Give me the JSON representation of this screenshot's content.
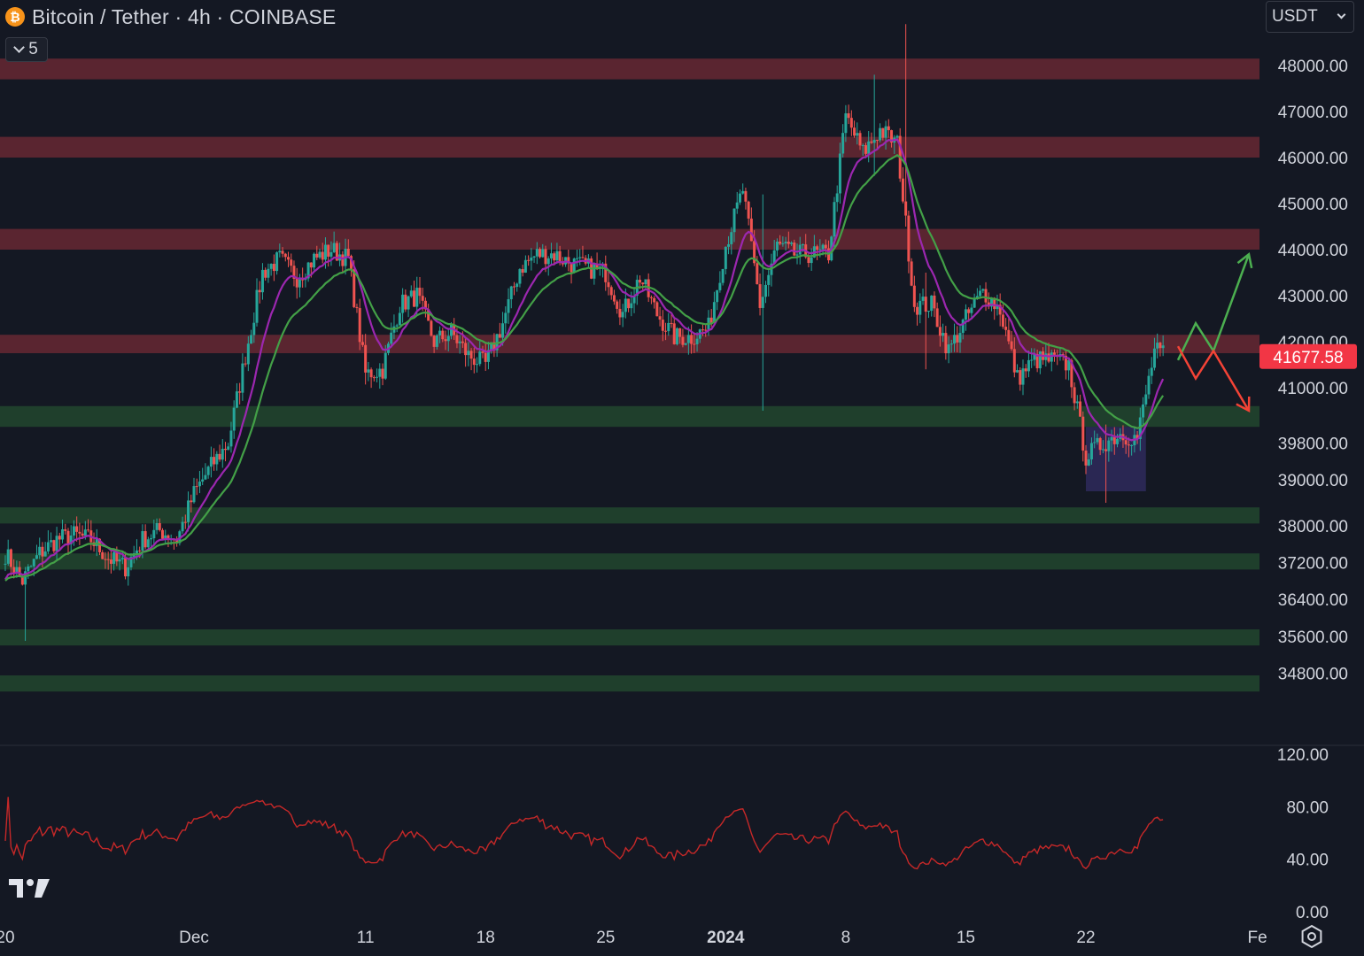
{
  "header": {
    "symbol_title": "Bitcoin / Tether · 4h · COINBASE",
    "coin_icon_glyph": "₿",
    "indicator_count": "5",
    "currency": "USDT"
  },
  "colors": {
    "background": "#141823",
    "resistance_zone": "#5a2530",
    "support_zone": "#1f3f2c",
    "consolidation_box": "#2e2a5c",
    "candle_up": "#26a69a",
    "candle_down": "#ef5350",
    "ema_fast": "#9c27b0",
    "ema_slow": "#43a047",
    "rsi": "#c62828",
    "arrow_up": "#4caf50",
    "arrow_down": "#f44336",
    "last_price_bg": "#f23645"
  },
  "chart_data": {
    "type": "candlestick",
    "price_axis": {
      "ticks": [
        34800,
        35600,
        36400,
        37200,
        38000,
        39000,
        39800,
        41000,
        42000,
        43000,
        44000,
        45000,
        46000,
        47000,
        48000
      ],
      "tick_labels": [
        "34800.00",
        "35600.00",
        "36400.00",
        "37200.00",
        "38000.00",
        "39000.00",
        "39800.00",
        "41000.00",
        "42000.00",
        "43000.00",
        "44000.00",
        "45000.00",
        "46000.00",
        "47000.00",
        "48000.00"
      ]
    },
    "time_axis": {
      "labels": [
        {
          "text": "20",
          "date": "2023-11-20"
        },
        {
          "text": "Dec",
          "date": "2023-12-01"
        },
        {
          "text": "11",
          "date": "2023-12-11"
        },
        {
          "text": "18",
          "date": "2023-12-18"
        },
        {
          "text": "25",
          "date": "2023-12-25"
        },
        {
          "text": "2024",
          "date": "2024-01-01",
          "bold": true
        },
        {
          "text": "8",
          "date": "2024-01-08"
        },
        {
          "text": "15",
          "date": "2024-01-15"
        },
        {
          "text": "22",
          "date": "2024-01-22"
        },
        {
          "text": "Fe",
          "date": "2024-02-01"
        }
      ]
    },
    "last_price": "41677.58",
    "resistance_zones": [
      [
        47700,
        48150
      ],
      [
        46000,
        46450
      ],
      [
        44000,
        44450
      ],
      [
        41750,
        42150
      ]
    ],
    "support_zones": [
      [
        40150,
        40600
      ],
      [
        38050,
        38400
      ],
      [
        37050,
        37400
      ],
      [
        35400,
        35750
      ],
      [
        34400,
        34750
      ]
    ],
    "consolidation_box": {
      "start": "2024-01-22",
      "end": "2024-01-25 12:00",
      "low": 38750,
      "high": 40150
    },
    "price_path": [
      [
        "2023-11-20",
        37400
      ],
      [
        "2023-11-21",
        36800
      ],
      [
        "2023-11-22",
        37400
      ],
      [
        "2023-11-23",
        37700
      ],
      [
        "2023-11-24",
        37800
      ],
      [
        "2023-11-25",
        37700
      ],
      [
        "2023-11-26",
        37300
      ],
      [
        "2023-11-27",
        37100
      ],
      [
        "2023-11-28",
        37700
      ],
      [
        "2023-11-29",
        37900
      ],
      [
        "2023-11-30",
        37700
      ],
      [
        "2023-12-01",
        38700
      ],
      [
        "2023-12-02",
        39300
      ],
      [
        "2023-12-03",
        39800
      ],
      [
        "2023-12-04",
        41700
      ],
      [
        "2023-12-05",
        43500
      ],
      [
        "2023-12-06",
        43800
      ],
      [
        "2023-12-07",
        43400
      ],
      [
        "2023-12-08",
        43800
      ],
      [
        "2023-12-09",
        44000
      ],
      [
        "2023-12-10",
        43800
      ],
      [
        "2023-12-11",
        41300
      ],
      [
        "2023-12-12",
        41400
      ],
      [
        "2023-12-13",
        42800
      ],
      [
        "2023-12-14",
        43000
      ],
      [
        "2023-12-15",
        42000
      ],
      [
        "2023-12-16",
        42200
      ],
      [
        "2023-12-17",
        41700
      ],
      [
        "2023-12-18",
        41500
      ],
      [
        "2023-12-19",
        42400
      ],
      [
        "2023-12-20",
        43600
      ],
      [
        "2023-12-21",
        43900
      ],
      [
        "2023-12-22",
        43900
      ],
      [
        "2023-12-23",
        43700
      ],
      [
        "2023-12-24",
        43600
      ],
      [
        "2023-12-25",
        43500
      ],
      [
        "2023-12-26",
        42600
      ],
      [
        "2023-12-27",
        43400
      ],
      [
        "2023-12-28",
        42600
      ],
      [
        "2023-12-29",
        42100
      ],
      [
        "2023-12-30",
        42100
      ],
      [
        "2023-12-31",
        42300
      ],
      [
        "2024-01-01",
        44100
      ],
      [
        "2024-01-02",
        45300
      ],
      [
        "2024-01-03",
        42800
      ],
      [
        "2024-01-04",
        44100
      ],
      [
        "2024-01-05",
        43900
      ],
      [
        "2024-01-06",
        43900
      ],
      [
        "2024-01-07",
        43900
      ],
      [
        "2024-01-08",
        46900
      ],
      [
        "2024-01-09",
        46100
      ],
      [
        "2024-01-10",
        46600
      ],
      [
        "2024-01-11",
        46300
      ],
      [
        "2024-01-12",
        42800
      ],
      [
        "2024-01-13",
        42800
      ],
      [
        "2024-01-14",
        41800
      ],
      [
        "2024-01-15",
        42500
      ],
      [
        "2024-01-16",
        43100
      ],
      [
        "2024-01-17",
        42700
      ],
      [
        "2024-01-18",
        41200
      ],
      [
        "2024-01-19",
        41600
      ],
      [
        "2024-01-20",
        41600
      ],
      [
        "2024-01-21",
        41500
      ],
      [
        "2024-01-22",
        39500
      ],
      [
        "2024-01-23",
        39800
      ],
      [
        "2024-01-24",
        40000
      ],
      [
        "2024-01-25",
        39900
      ],
      [
        "2024-01-26",
        41800
      ],
      [
        "2024-01-26 16:00",
        41680
      ]
    ],
    "wick_extremes": [
      [
        "2023-11-21 04:00",
        35500,
        36900
      ],
      [
        "2024-01-09 16:00",
        45600,
        47800
      ],
      [
        "2024-01-11 12:00",
        44500,
        48900
      ],
      [
        "2024-01-03 04:00",
        40500,
        45200
      ],
      [
        "2024-01-12 16:00",
        41400,
        43500
      ],
      [
        "2024-01-23 04:00",
        38500,
        40200
      ]
    ],
    "projections": [
      {
        "direction": "up",
        "path": [
          [
            41600,
            0
          ],
          [
            42400,
            1
          ],
          [
            41800,
            2
          ],
          [
            43900,
            4
          ]
        ]
      },
      {
        "direction": "down",
        "path": [
          [
            41900,
            0
          ],
          [
            41200,
            1
          ],
          [
            41800,
            2
          ],
          [
            40500,
            4
          ]
        ]
      }
    ],
    "rsi": {
      "ticks": [
        0,
        40,
        80,
        120
      ],
      "tick_labels": [
        "0.00",
        "40.00",
        "80.00",
        "120.00"
      ],
      "range": [
        0,
        120
      ]
    }
  }
}
